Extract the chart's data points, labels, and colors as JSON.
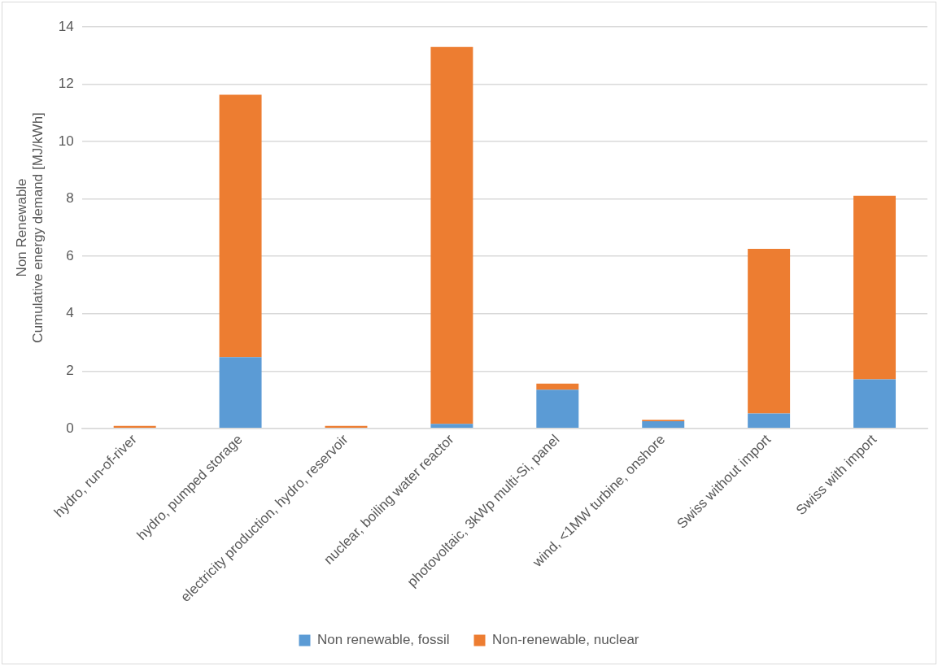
{
  "chart_data": {
    "type": "bar",
    "stacked": true,
    "ylabel": "Non Renewable\nCumulative energy demand [MJ/kWh]",
    "categories": [
      "hydro, run-of-river",
      "hydro, pumped storage",
      "electricity production, hydro, reservoir",
      "nuclear, boiling water reactor",
      "photovoltaic, 3kWp multi-Si, panel",
      "wind, <1MW turbine, onshore",
      "Swiss without import",
      "Swiss with import"
    ],
    "series": [
      {
        "name": "Non renewable, fossil",
        "color": "#5b9bd5",
        "values": [
          null,
          2.48,
          null,
          0.16,
          1.35,
          0.25,
          0.52,
          1.71
        ]
      },
      {
        "name": "Non-renewable, nuclear",
        "color": "#ed7d31",
        "values": [
          0.09,
          9.15,
          0.09,
          13.14,
          0.21,
          0.05,
          5.74,
          6.4
        ]
      }
    ],
    "ylim": [
      0,
      14
    ],
    "yticks": [
      0,
      2,
      4,
      6,
      8,
      10,
      12,
      14
    ],
    "grid": "y",
    "legend": "bottom"
  }
}
